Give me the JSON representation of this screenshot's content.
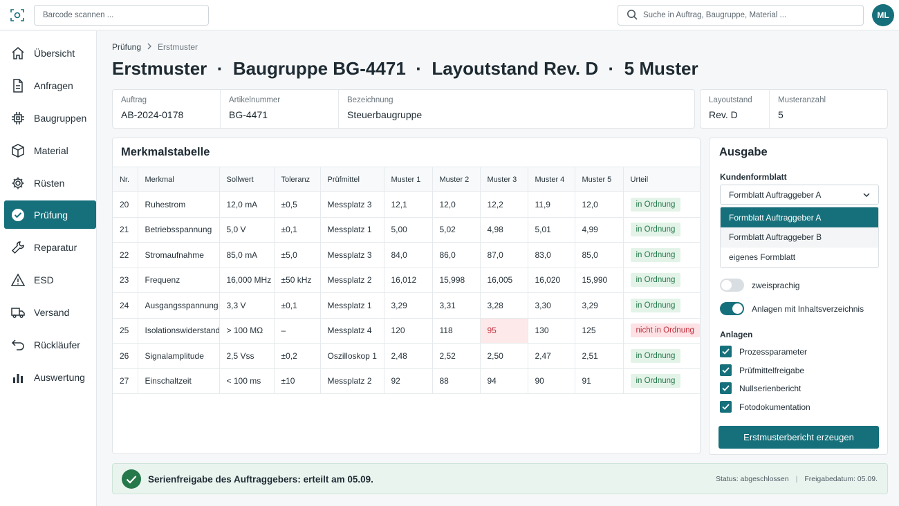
{
  "topbar": {
    "barcode_placeholder": "Barcode scannen ...",
    "search_placeholder": "Suche in Auftrag, Baugruppe, Material ...",
    "avatar_initials": "ML"
  },
  "sidebar": {
    "items": [
      {
        "label": "Übersicht",
        "icon": "home-icon"
      },
      {
        "label": "Anfragen",
        "icon": "document-icon"
      },
      {
        "label": "Baugruppen",
        "icon": "chip-icon"
      },
      {
        "label": "Material",
        "icon": "box-icon"
      },
      {
        "label": "Rüsten",
        "icon": "gear-icon"
      },
      {
        "label": "Prüfung",
        "icon": "check-circle-icon",
        "active": true
      },
      {
        "label": "Reparatur",
        "icon": "wrench-icon"
      },
      {
        "label": "ESD",
        "icon": "warning-icon"
      },
      {
        "label": "Versand",
        "icon": "truck-icon"
      },
      {
        "label": "Rückläufer",
        "icon": "return-icon"
      },
      {
        "label": "Auswertung",
        "icon": "bar-chart-icon"
      }
    ]
  },
  "breadcrumb": {
    "parent": "Prüfung",
    "current": "Erstmuster"
  },
  "page": {
    "title": "Erstmuster  ·  Baugruppe BG-4471  ·  Layoutstand Rev. D  ·  5 Muster"
  },
  "info": {
    "auftrag_label": "Auftrag",
    "auftrag": "AB-2024-0178",
    "artikel_label": "Artikelnummer",
    "artikel": "BG-4471",
    "bezeichnung_label": "Bezeichnung",
    "bezeichnung": "Steuerbaugruppe",
    "layout_label": "Layoutstand",
    "layout": "Rev. D",
    "muster_label": "Musteranzahl",
    "muster": "5"
  },
  "table": {
    "title": "Merkmalstabelle",
    "headers": [
      "Nr.",
      "Merkmal",
      "Sollwert",
      "Toleranz",
      "Prüfmittel",
      "Muster 1",
      "Muster 2",
      "Muster 3",
      "Muster 4",
      "Muster 5",
      "Urteil"
    ],
    "rows": [
      {
        "nr": "20",
        "merkmal": "Ruhestrom",
        "soll": "12,0 mA",
        "tol": "±0,5",
        "pm": "Messplatz 3",
        "m": [
          "12,1",
          "12,0",
          "12,2",
          "11,9",
          "12,0"
        ],
        "urteil": "in Ordnung",
        "ok": true
      },
      {
        "nr": "21",
        "merkmal": "Betriebsspannung",
        "soll": "5,0 V",
        "tol": "±0,1",
        "pm": "Messplatz 1",
        "m": [
          "5,00",
          "5,02",
          "4,98",
          "5,01",
          "4,99"
        ],
        "urteil": "in Ordnung",
        "ok": true
      },
      {
        "nr": "22",
        "merkmal": "Stromaufnahme",
        "soll": "85,0 mA",
        "tol": "±5,0",
        "pm": "Messplatz 3",
        "m": [
          "84,0",
          "86,0",
          "87,0",
          "83,0",
          "85,0"
        ],
        "urteil": "in Ordnung",
        "ok": true
      },
      {
        "nr": "23",
        "merkmal": "Frequenz",
        "soll": "16,000 MHz",
        "tol": "±50 kHz",
        "pm": "Messplatz 2",
        "m": [
          "16,012",
          "15,998",
          "16,005",
          "16,020",
          "15,990"
        ],
        "urteil": "in Ordnung",
        "ok": true
      },
      {
        "nr": "24",
        "merkmal": "Ausgangsspannung",
        "soll": "3,3 V",
        "tol": "±0,1",
        "pm": "Messplatz 1",
        "m": [
          "3,29",
          "3,31",
          "3,28",
          "3,30",
          "3,29"
        ],
        "urteil": "in Ordnung",
        "ok": true
      },
      {
        "nr": "25",
        "merkmal": "Isolationswiderstand",
        "soll": "> 100 MΩ",
        "tol": "–",
        "pm": "Messplatz 4",
        "m": [
          "120",
          "118",
          "95",
          "130",
          "125"
        ],
        "urteil": "nicht in Ordnung",
        "ok": false,
        "bad_index": 2
      },
      {
        "nr": "26",
        "merkmal": "Signalamplitude",
        "soll": "2,5 Vss",
        "tol": "±0,2",
        "pm": "Oszilloskop 1",
        "m": [
          "2,48",
          "2,52",
          "2,50",
          "2,47",
          "2,51"
        ],
        "urteil": "in Ordnung",
        "ok": true
      },
      {
        "nr": "27",
        "merkmal": "Einschaltzeit",
        "soll": "< 100 ms",
        "tol": "±10",
        "pm": "Messplatz 2",
        "m": [
          "92",
          "88",
          "94",
          "90",
          "91"
        ],
        "urteil": "in Ordnung",
        "ok": true
      }
    ]
  },
  "output": {
    "title": "Ausgabe",
    "form_label": "Kundenformblatt",
    "form_selected": "Formblatt Auftraggeber A",
    "form_options": [
      "Formblatt Auftraggeber A",
      "Formblatt Auftraggeber B",
      "eigenes Formblatt"
    ],
    "toggle_bilingual": "zweisprachig",
    "toggle_bilingual_on": false,
    "toggle_toc": "Anlagen mit Inhaltsverzeichnis",
    "toggle_toc_on": true,
    "attachments_label": "Anlagen",
    "attachments": [
      "Prozessparameter",
      "Prüfmittelfreigabe",
      "Nullserienbericht",
      "Fotodokumentation"
    ],
    "generate_button": "Erstmusterbericht erzeugen"
  },
  "status": {
    "message": "Serienfreigabe des Auftraggebers: erteilt am 05.09.",
    "status_text": "Status: abgeschlossen",
    "release_text": "Freigabedatum: 05.09."
  },
  "colors": {
    "accent": "#16707b",
    "ok": "#25784a",
    "bad": "#c0303d"
  }
}
